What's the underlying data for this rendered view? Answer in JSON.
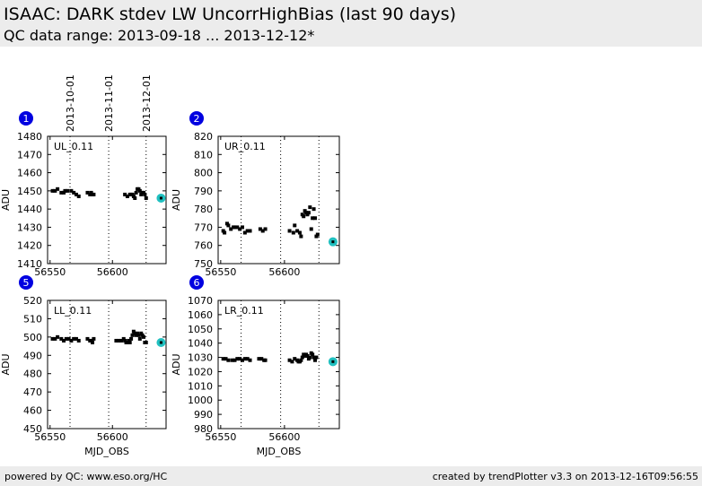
{
  "header": {
    "title": "ISAAC: DARK stdev LW UncorrHighBias (last 90 days)",
    "subtitle": "QC data range: 2013-09-18 ... 2013-12-12*"
  },
  "footer": {
    "left": "powered by QC: www.eso.org/HC",
    "right": "created by trendPlotter v3.3 on 2013-12-16T09:56:55"
  },
  "colors": {
    "badge": "#0000e0",
    "marker": "#000000",
    "highlight": "#20c0c0"
  },
  "date_markers": [
    {
      "label": "2013-10-01",
      "mjd": 56566
    },
    {
      "label": "2013-11-01",
      "mjd": 56597
    },
    {
      "label": "2013-12-01",
      "mjd": 56627
    }
  ],
  "chart_data": [
    {
      "type": "scatter",
      "badge": "1",
      "panel_label": "UL_0.11",
      "xlabel": "",
      "ylabel": "ADU",
      "xlim": [
        56548,
        56643
      ],
      "ylim": [
        1410,
        1480
      ],
      "xticks": [
        56550,
        56600
      ],
      "yticks": [
        1410,
        1420,
        1430,
        1440,
        1450,
        1460,
        1470,
        1480
      ],
      "x": [
        56552,
        56554,
        56556,
        56559,
        56561,
        56562,
        56564,
        56567,
        56569,
        56571,
        56573,
        56580,
        56582,
        56583,
        56584,
        56585,
        56610,
        56612,
        56614,
        56615,
        56616,
        56617,
        56618,
        56619,
        56620,
        56621,
        56622,
        56623,
        56624,
        56625,
        56626,
        56627
      ],
      "y": [
        1450,
        1450,
        1451,
        1449,
        1449,
        1450,
        1450,
        1450,
        1449,
        1448,
        1447,
        1449,
        1448,
        1449,
        1448,
        1448,
        1448,
        1447,
        1448,
        1448,
        1448,
        1447,
        1446,
        1449,
        1451,
        1451,
        1450,
        1448,
        1449,
        1449,
        1448,
        1446
      ],
      "highlight": {
        "x": 56639,
        "y": 1446
      }
    },
    {
      "type": "scatter",
      "badge": "2",
      "panel_label": "UR_0.11",
      "xlabel": "",
      "ylabel": "ADU",
      "xlim": [
        56548,
        56643
      ],
      "ylim": [
        750,
        820
      ],
      "xticks": [
        56550,
        56600
      ],
      "yticks": [
        750,
        760,
        770,
        780,
        790,
        800,
        810,
        820
      ],
      "x": [
        56552,
        56553,
        56555,
        56556,
        56558,
        56560,
        56561,
        56563,
        56565,
        56567,
        56569,
        56571,
        56573,
        56581,
        56583,
        56585,
        56604,
        56607,
        56608,
        56610,
        56612,
        56613,
        56614,
        56615,
        56616,
        56617,
        56618,
        56619,
        56620,
        56621,
        56622,
        56623,
        56624,
        56625,
        56626
      ],
      "y": [
        768,
        767,
        772,
        771,
        769,
        770,
        770,
        770,
        769,
        770,
        767,
        768,
        768,
        769,
        768,
        769,
        768,
        767,
        771,
        768,
        767,
        765,
        777,
        776,
        779,
        778,
        777,
        778,
        781,
        769,
        775,
        780,
        775,
        765,
        766
      ],
      "highlight": {
        "x": 56638,
        "y": 762
      }
    },
    {
      "type": "scatter",
      "badge": "5",
      "panel_label": "LL_0.11",
      "xlabel": "MJD_OBS",
      "ylabel": "ADU",
      "xlim": [
        56548,
        56643
      ],
      "ylim": [
        450,
        520
      ],
      "xticks": [
        56550,
        56600
      ],
      "yticks": [
        450,
        460,
        470,
        480,
        490,
        500,
        510,
        520
      ],
      "x": [
        56552,
        56554,
        56556,
        56559,
        56561,
        56563,
        56565,
        56567,
        56569,
        56571,
        56573,
        56580,
        56582,
        56583,
        56584,
        56585,
        56603,
        56605,
        56607,
        56609,
        56610,
        56611,
        56612,
        56613,
        56614,
        56615,
        56616,
        56617,
        56618,
        56619,
        56620,
        56621,
        56622,
        56623,
        56624,
        56625,
        56626,
        56627
      ],
      "y": [
        499,
        499,
        500,
        499,
        498,
        499,
        499,
        498,
        499,
        499,
        498,
        499,
        498,
        498,
        497,
        499,
        498,
        498,
        498,
        499,
        498,
        497,
        497,
        498,
        497,
        499,
        501,
        503,
        502,
        501,
        502,
        501,
        499,
        502,
        501,
        500,
        497,
        497
      ],
      "highlight": {
        "x": 56639,
        "y": 497
      }
    },
    {
      "type": "scatter",
      "badge": "6",
      "panel_label": "LR_0.11",
      "xlabel": "MJD_OBS",
      "ylabel": "ADU",
      "xlim": [
        56548,
        56643
      ],
      "ylim": [
        980,
        1070
      ],
      "xticks": [
        56550,
        56600
      ],
      "yticks": [
        980,
        990,
        1000,
        1010,
        1020,
        1030,
        1040,
        1050,
        1060,
        1070
      ],
      "x": [
        56552,
        56554,
        56556,
        56559,
        56561,
        56563,
        56565,
        56567,
        56569,
        56571,
        56573,
        56580,
        56582,
        56584,
        56585,
        56604,
        56606,
        56608,
        56610,
        56611,
        56612,
        56613,
        56614,
        56615,
        56616,
        56617,
        56618,
        56619,
        56620,
        56621,
        56622,
        56623,
        56624,
        56625
      ],
      "y": [
        1029,
        1029,
        1028,
        1028,
        1028,
        1029,
        1029,
        1028,
        1029,
        1029,
        1028,
        1029,
        1029,
        1028,
        1028,
        1028,
        1027,
        1029,
        1028,
        1027,
        1027,
        1028,
        1030,
        1032,
        1031,
        1032,
        1031,
        1029,
        1030,
        1033,
        1032,
        1030,
        1028,
        1030
      ],
      "highlight": {
        "x": 56638,
        "y": 1027
      }
    }
  ]
}
